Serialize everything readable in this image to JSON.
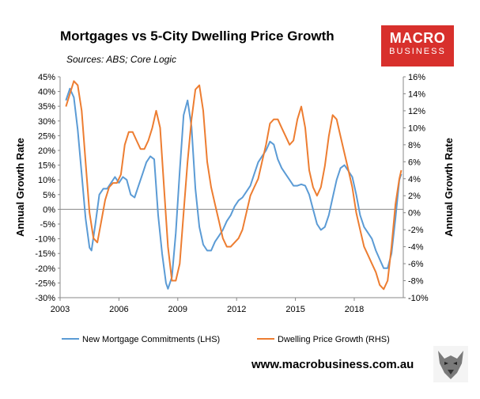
{
  "header": {
    "title": "Mortgages vs 5-City Dwelling Price Growth",
    "subtitle": "Sources: ABS; Core Logic"
  },
  "brand": {
    "logo_line1": "MACRO",
    "logo_line2": "BUSINESS",
    "url": "www.macrobusiness.com.au",
    "color": "#d8302c"
  },
  "chart_data": {
    "type": "line",
    "ylabel_left": "Annual Growth Rate",
    "ylabel_right": "Annual Growth Rate",
    "x_ticks": [
      "2003",
      "2006",
      "2009",
      "2012",
      "2015",
      "2018"
    ],
    "xlim": [
      2003,
      2020.5
    ],
    "ylim_left": [
      -30,
      45
    ],
    "ylim_right": [
      -10,
      16
    ],
    "left_ticks": [
      "45%",
      "40%",
      "35%",
      "30%",
      "25%",
      "20%",
      "15%",
      "10%",
      "5%",
      "0%",
      "-5%",
      "-10%",
      "-15%",
      "-20%",
      "-25%",
      "-30%"
    ],
    "right_ticks": [
      "16%",
      "14%",
      "12%",
      "10%",
      "8%",
      "6%",
      "4%",
      "2%",
      "0%",
      "-2%",
      "-4%",
      "-6%",
      "-8%",
      "-10%"
    ],
    "legend_position": "bottom",
    "series": [
      {
        "name": "New Mortgage Commitments (LHS)",
        "axis": "left",
        "color": "#5b9bd5",
        "points": [
          [
            2003.3,
            37
          ],
          [
            2003.5,
            41
          ],
          [
            2003.7,
            38
          ],
          [
            2003.9,
            27
          ],
          [
            2004.1,
            12
          ],
          [
            2004.3,
            -3
          ],
          [
            2004.5,
            -13
          ],
          [
            2004.6,
            -14
          ],
          [
            2004.8,
            -5
          ],
          [
            2005.0,
            5
          ],
          [
            2005.2,
            7
          ],
          [
            2005.4,
            7
          ],
          [
            2005.6,
            9
          ],
          [
            2005.8,
            11
          ],
          [
            2006.0,
            9
          ],
          [
            2006.2,
            11
          ],
          [
            2006.4,
            10
          ],
          [
            2006.6,
            5
          ],
          [
            2006.8,
            4
          ],
          [
            2007.0,
            8
          ],
          [
            2007.2,
            12
          ],
          [
            2007.4,
            16
          ],
          [
            2007.6,
            18
          ],
          [
            2007.8,
            17
          ],
          [
            2008.0,
            -2
          ],
          [
            2008.2,
            -15
          ],
          [
            2008.4,
            -25
          ],
          [
            2008.5,
            -27
          ],
          [
            2008.7,
            -23
          ],
          [
            2008.9,
            -8
          ],
          [
            2009.1,
            13
          ],
          [
            2009.3,
            32
          ],
          [
            2009.5,
            37
          ],
          [
            2009.7,
            28
          ],
          [
            2009.9,
            7
          ],
          [
            2010.1,
            -6
          ],
          [
            2010.3,
            -12
          ],
          [
            2010.5,
            -14
          ],
          [
            2010.7,
            -14
          ],
          [
            2010.9,
            -11
          ],
          [
            2011.1,
            -9
          ],
          [
            2011.3,
            -7
          ],
          [
            2011.5,
            -4
          ],
          [
            2011.7,
            -2
          ],
          [
            2011.9,
            1
          ],
          [
            2012.1,
            3
          ],
          [
            2012.3,
            4
          ],
          [
            2012.5,
            6
          ],
          [
            2012.7,
            8
          ],
          [
            2012.9,
            12
          ],
          [
            2013.1,
            16
          ],
          [
            2013.3,
            18
          ],
          [
            2013.5,
            20
          ],
          [
            2013.7,
            23
          ],
          [
            2013.9,
            22
          ],
          [
            2014.1,
            17
          ],
          [
            2014.3,
            14
          ],
          [
            2014.5,
            12
          ],
          [
            2014.7,
            10
          ],
          [
            2014.9,
            8
          ],
          [
            2015.1,
            8
          ],
          [
            2015.3,
            8.5
          ],
          [
            2015.5,
            8
          ],
          [
            2015.7,
            5
          ],
          [
            2015.9,
            0
          ],
          [
            2016.1,
            -5
          ],
          [
            2016.3,
            -7
          ],
          [
            2016.5,
            -6
          ],
          [
            2016.7,
            -2
          ],
          [
            2016.9,
            4
          ],
          [
            2017.1,
            10
          ],
          [
            2017.3,
            14
          ],
          [
            2017.5,
            15
          ],
          [
            2017.7,
            13
          ],
          [
            2017.9,
            11
          ],
          [
            2018.1,
            5
          ],
          [
            2018.3,
            -2
          ],
          [
            2018.5,
            -6
          ],
          [
            2018.7,
            -8
          ],
          [
            2018.9,
            -10
          ],
          [
            2019.1,
            -14
          ],
          [
            2019.3,
            -17
          ],
          [
            2019.5,
            -20
          ],
          [
            2019.7,
            -20
          ],
          [
            2019.9,
            -15
          ],
          [
            2020.1,
            -3
          ],
          [
            2020.3,
            10
          ],
          [
            2020.4,
            12
          ]
        ]
      },
      {
        "name": "Dwelling Price Growth (RHS)",
        "axis": "right",
        "color": "#ed7d31",
        "points": [
          [
            2003.3,
            12.5
          ],
          [
            2003.5,
            14
          ],
          [
            2003.7,
            15.5
          ],
          [
            2003.9,
            15
          ],
          [
            2004.1,
            12
          ],
          [
            2004.3,
            6
          ],
          [
            2004.5,
            0
          ],
          [
            2004.7,
            -3
          ],
          [
            2004.9,
            -3.5
          ],
          [
            2005.1,
            -1
          ],
          [
            2005.3,
            1.5
          ],
          [
            2005.5,
            3
          ],
          [
            2005.7,
            3.5
          ],
          [
            2005.9,
            3.5
          ],
          [
            2006.1,
            4.5
          ],
          [
            2006.3,
            8
          ],
          [
            2006.5,
            9.5
          ],
          [
            2006.7,
            9.5
          ],
          [
            2006.9,
            8.5
          ],
          [
            2007.1,
            7.5
          ],
          [
            2007.3,
            7.5
          ],
          [
            2007.5,
            8.5
          ],
          [
            2007.7,
            10
          ],
          [
            2007.9,
            12
          ],
          [
            2008.1,
            10
          ],
          [
            2008.3,
            3
          ],
          [
            2008.5,
            -4
          ],
          [
            2008.7,
            -8
          ],
          [
            2008.9,
            -8
          ],
          [
            2009.1,
            -6
          ],
          [
            2009.3,
            0
          ],
          [
            2009.5,
            6
          ],
          [
            2009.7,
            11
          ],
          [
            2009.9,
            14.5
          ],
          [
            2010.1,
            15
          ],
          [
            2010.3,
            12
          ],
          [
            2010.5,
            6
          ],
          [
            2010.7,
            3
          ],
          [
            2010.9,
            1
          ],
          [
            2011.1,
            -1
          ],
          [
            2011.3,
            -3
          ],
          [
            2011.5,
            -4
          ],
          [
            2011.7,
            -4
          ],
          [
            2011.9,
            -3.5
          ],
          [
            2012.1,
            -3
          ],
          [
            2012.3,
            -2
          ],
          [
            2012.5,
            0
          ],
          [
            2012.7,
            2
          ],
          [
            2012.9,
            3
          ],
          [
            2013.1,
            4
          ],
          [
            2013.3,
            6
          ],
          [
            2013.5,
            8
          ],
          [
            2013.7,
            10.5
          ],
          [
            2013.9,
            11
          ],
          [
            2014.1,
            11
          ],
          [
            2014.3,
            10
          ],
          [
            2014.5,
            9
          ],
          [
            2014.7,
            8
          ],
          [
            2014.9,
            8.5
          ],
          [
            2015.1,
            11
          ],
          [
            2015.3,
            12.5
          ],
          [
            2015.5,
            10
          ],
          [
            2015.7,
            5
          ],
          [
            2015.9,
            3
          ],
          [
            2016.1,
            2
          ],
          [
            2016.3,
            3
          ],
          [
            2016.5,
            5.5
          ],
          [
            2016.7,
            9
          ],
          [
            2016.9,
            11.5
          ],
          [
            2017.1,
            11
          ],
          [
            2017.3,
            9
          ],
          [
            2017.5,
            7
          ],
          [
            2017.7,
            5
          ],
          [
            2017.9,
            3
          ],
          [
            2018.1,
            0
          ],
          [
            2018.3,
            -2
          ],
          [
            2018.5,
            -4
          ],
          [
            2018.7,
            -5
          ],
          [
            2018.9,
            -6
          ],
          [
            2019.1,
            -7
          ],
          [
            2019.3,
            -8.5
          ],
          [
            2019.5,
            -9
          ],
          [
            2019.7,
            -8
          ],
          [
            2019.9,
            -4
          ],
          [
            2020.1,
            1
          ],
          [
            2020.3,
            4
          ],
          [
            2020.4,
            5
          ]
        ]
      }
    ]
  }
}
